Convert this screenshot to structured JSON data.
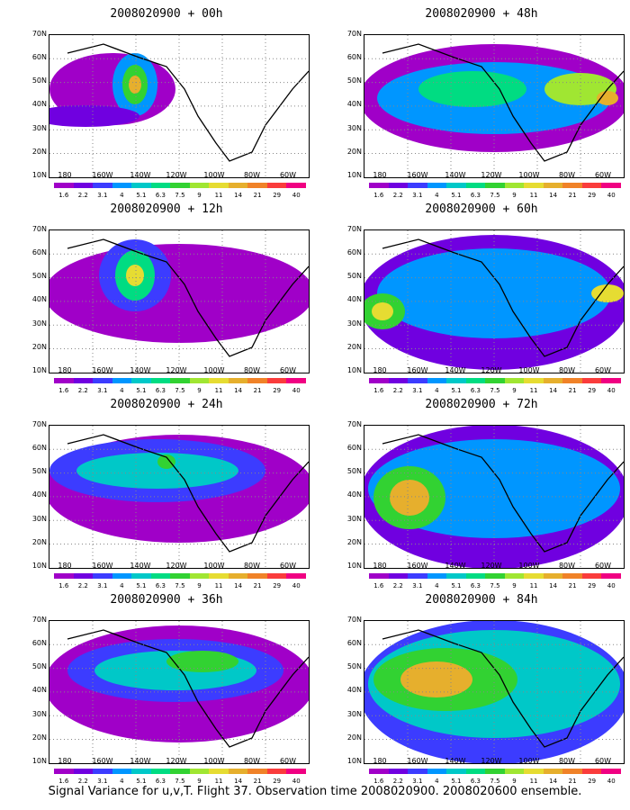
{
  "caption": "Signal Variance for u,v,T. Flight 37. Observation time 2008020900. 2008020600 ensemble.",
  "y_axis_labels": [
    "70N",
    "60N",
    "50N",
    "40N",
    "30N",
    "20N",
    "10N"
  ],
  "x_axis_labels": [
    "180",
    "160W",
    "140W",
    "120W",
    "100W",
    "80W",
    "60W"
  ],
  "colorbar_labels": [
    "1.6",
    "2.2",
    "3.1",
    "4",
    "5.1",
    "6.3",
    "7.5",
    "9",
    "11",
    "14",
    "21",
    "29",
    "40"
  ],
  "colorbar_colors": [
    "#a000c8",
    "#7000e0",
    "#3c3cff",
    "#0096ff",
    "#00c8c8",
    "#00dc82",
    "#32d232",
    "#a0e632",
    "#e6dc32",
    "#e6af2d",
    "#f08228",
    "#fa3c3c",
    "#f00082"
  ],
  "panels": [
    {
      "title": "2008020900 + 00h"
    },
    {
      "title": "2008020900 + 48h"
    },
    {
      "title": "2008020900 + 12h"
    },
    {
      "title": "2008020900 + 60h"
    },
    {
      "title": "2008020900 + 24h"
    },
    {
      "title": "2008020900 + 72h"
    },
    {
      "title": "2008020900 + 36h"
    },
    {
      "title": "2008020900 + 84h"
    }
  ]
}
